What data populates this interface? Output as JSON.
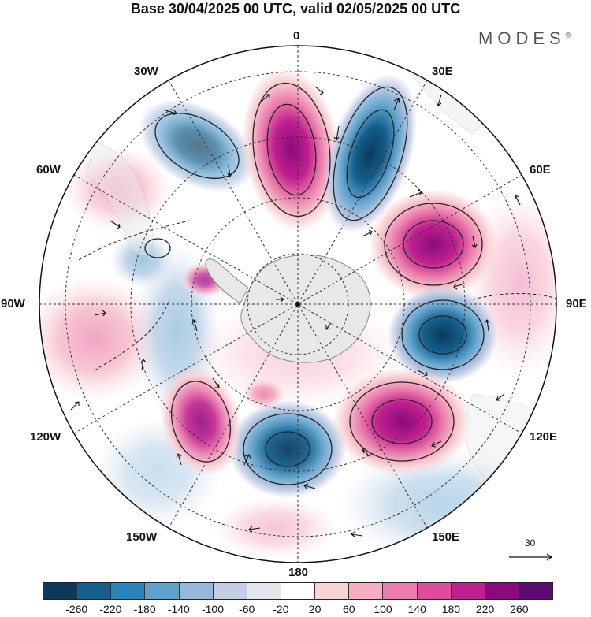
{
  "title": "Base 30/04/2025 00 UTC, valid 02/05/2025 00 UTC",
  "brand": {
    "name": "MODES",
    "mark": "®"
  },
  "longitude_labels": {
    "0": "0",
    "30E": "30E",
    "60E": "60E",
    "90E": "90E",
    "120E": "120E",
    "150E": "150E",
    "180": "180",
    "150W": "150W",
    "120W": "120W",
    "90W": "90W",
    "60W": "60W",
    "30W": "30W"
  },
  "vector_key": {
    "value": "30"
  },
  "colorbar": {
    "colors": [
      "#0b3a5c",
      "#145f8c",
      "#2b84bd",
      "#5fa3cd",
      "#94b9da",
      "#c3cde4",
      "#e6e6f0",
      "#ffffff",
      "#f8d4d6",
      "#f4aebf",
      "#ec7dac",
      "#e04c9c",
      "#c0208e",
      "#8a0a7e",
      "#5d0b74"
    ],
    "labels": [
      "-260",
      "-220",
      "-180",
      "-140",
      "-100",
      "-60",
      "-20",
      "20",
      "60",
      "100",
      "140",
      "180",
      "220",
      "260"
    ]
  },
  "map": {
    "projection": "south-polar-stereographic",
    "anomaly_centers": [
      {
        "lon": 5,
        "r": 0.62,
        "value": 240
      },
      {
        "lon": 30,
        "r": 0.62,
        "value": -260
      },
      {
        "lon": 65,
        "r": 0.6,
        "value": 280
      },
      {
        "lon": 95,
        "r": 0.58,
        "value": -260
      },
      {
        "lon": 128,
        "r": 0.6,
        "value": 240
      },
      {
        "lon": 165,
        "r": 0.48,
        "value": -240
      },
      {
        "lon": -150,
        "r": 0.6,
        "value": 200
      },
      {
        "lon": -35,
        "r": 0.72,
        "value": -140
      },
      {
        "lon": -85,
        "r": 0.4,
        "value": 120
      }
    ]
  }
}
